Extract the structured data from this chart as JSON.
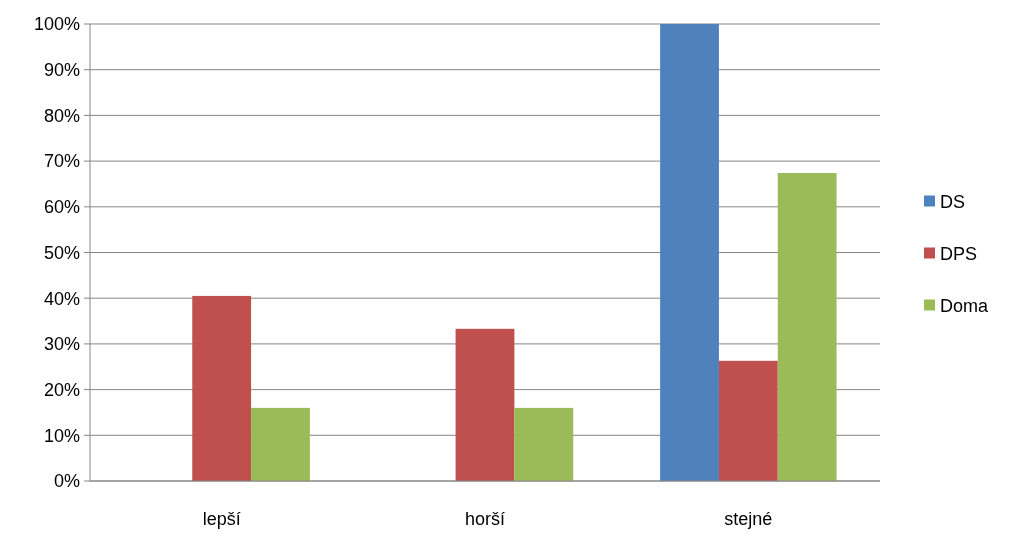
{
  "chart_data": {
    "type": "bar",
    "categories": [
      "lepší",
      "horší",
      "stejné"
    ],
    "series": [
      {
        "name": "DS",
        "color": "#4f81bd",
        "values": [
          0,
          0,
          100
        ]
      },
      {
        "name": "DPS",
        "color": "#c0504d",
        "values": [
          40.5,
          33.3,
          26.3
        ]
      },
      {
        "name": "Doma",
        "color": "#9bbb59",
        "values": [
          16,
          16,
          67.4
        ]
      }
    ],
    "ylim": [
      0,
      100
    ],
    "yticks": [
      {
        "value": 0,
        "label": "0%"
      },
      {
        "value": 10,
        "label": "10%"
      },
      {
        "value": 20,
        "label": "20%"
      },
      {
        "value": 30,
        "label": "30%"
      },
      {
        "value": 40,
        "label": "40%"
      },
      {
        "value": 50,
        "label": "50%"
      },
      {
        "value": 60,
        "label": "60%"
      },
      {
        "value": 70,
        "label": "70%"
      },
      {
        "value": 80,
        "label": "80%"
      },
      {
        "value": 90,
        "label": "90%"
      },
      {
        "value": 100,
        "label": "100%"
      }
    ],
    "grid": "y",
    "legend": "right"
  }
}
